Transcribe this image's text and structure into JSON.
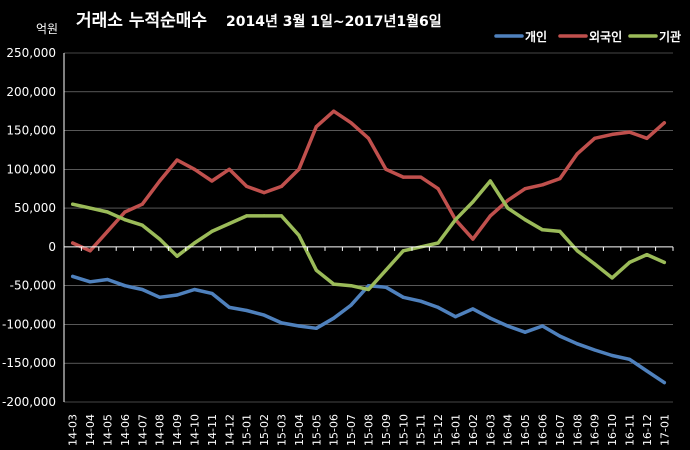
{
  "chart_data": {
    "type": "line",
    "title_main": "거래소 누적순매수",
    "title_period": "2014년 3월 1일~2017년1월6일",
    "unit_label": "억원",
    "ylim": [
      -200000,
      250000
    ],
    "y_ticks": [
      250000,
      200000,
      150000,
      100000,
      50000,
      0,
      -50000,
      -100000,
      -150000,
      -200000
    ],
    "y_tick_labels": [
      "250,000",
      "200,000",
      "150,000",
      "100,000",
      "50,000",
      "0",
      "-50,000",
      "-100,000",
      "-150,000",
      "-200,000"
    ],
    "grid": true,
    "legend_position": "top-right",
    "categories": [
      "14-03",
      "14-04",
      "14-05",
      "14-06",
      "14-07",
      "14-08",
      "14-09",
      "14-10",
      "14-11",
      "14-12",
      "15-01",
      "15-02",
      "15-03",
      "15-04",
      "15-05",
      "15-06",
      "15-07",
      "15-08",
      "15-09",
      "15-10",
      "15-11",
      "15-12",
      "16-01",
      "16-02",
      "16-03",
      "16-04",
      "16-05",
      "16-06",
      "16-07",
      "16-08",
      "16-09",
      "16-10",
      "16-11",
      "16-12",
      "17-01"
    ],
    "series": [
      {
        "name": "개인",
        "color": "#4f81bd",
        "values": [
          -38000,
          -45000,
          -42000,
          -50000,
          -55000,
          -65000,
          -62000,
          -55000,
          -60000,
          -78000,
          -82000,
          -88000,
          -98000,
          -102000,
          -105000,
          -92000,
          -75000,
          -50000,
          -52000,
          -65000,
          -70000,
          -78000,
          -90000,
          -80000,
          -92000,
          -102000,
          -110000,
          -102000,
          -115000,
          -125000,
          -133000,
          -140000,
          -145000,
          -160000,
          -175000
        ]
      },
      {
        "name": "외국인",
        "color": "#c0504d",
        "values": [
          5000,
          -5000,
          20000,
          45000,
          55000,
          85000,
          112000,
          100000,
          85000,
          100000,
          78000,
          70000,
          78000,
          100000,
          155000,
          175000,
          160000,
          140000,
          100000,
          90000,
          90000,
          75000,
          35000,
          10000,
          40000,
          60000,
          75000,
          80000,
          88000,
          120000,
          140000,
          145000,
          148000,
          140000,
          160000
        ]
      },
      {
        "name": "기관",
        "color": "#9bbb59",
        "values": [
          55000,
          50000,
          45000,
          35000,
          28000,
          10000,
          -12000,
          5000,
          20000,
          30000,
          40000,
          40000,
          40000,
          15000,
          -30000,
          -48000,
          -50000,
          -55000,
          -30000,
          -5000,
          0,
          5000,
          35000,
          58000,
          85000,
          50000,
          35000,
          22000,
          20000,
          -5000,
          -22000,
          -40000,
          -20000,
          -10000,
          -20000
        ]
      }
    ]
  }
}
